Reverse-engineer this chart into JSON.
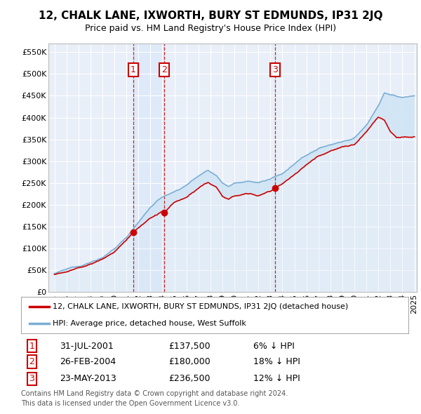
{
  "title": "12, CHALK LANE, IXWORTH, BURY ST EDMUNDS, IP31 2JQ",
  "subtitle": "Price paid vs. HM Land Registry's House Price Index (HPI)",
  "legend_line1": "12, CHALK LANE, IXWORTH, BURY ST EDMUNDS, IP31 2JQ (detached house)",
  "legend_line2": "HPI: Average price, detached house, West Suffolk",
  "footnote1": "Contains HM Land Registry data © Crown copyright and database right 2024.",
  "footnote2": "This data is licensed under the Open Government Licence v3.0.",
  "transactions": [
    {
      "num": 1,
      "date": "31-JUL-2001",
      "price": 137500,
      "note": "6% ↓ HPI",
      "x_year": 2001.58
    },
    {
      "num": 2,
      "date": "26-FEB-2004",
      "price": 180000,
      "note": "18% ↓ HPI",
      "x_year": 2004.15
    },
    {
      "num": 3,
      "date": "23-MAY-2013",
      "price": 236500,
      "note": "12% ↓ HPI",
      "x_year": 2013.39
    }
  ],
  "hpi_color": "#aac8ea",
  "hpi_line_color": "#7aaed4",
  "price_color": "#cc0000",
  "fill_color": "#d0e4f5",
  "vline_color": "#cc0000",
  "plot_bg_color": "#e8eff8",
  "ylim": [
    0,
    570000
  ],
  "yticks": [
    0,
    50000,
    100000,
    150000,
    200000,
    250000,
    300000,
    350000,
    400000,
    450000,
    500000,
    550000
  ],
  "xlim_start": 1994.5,
  "xlim_end": 2025.2
}
